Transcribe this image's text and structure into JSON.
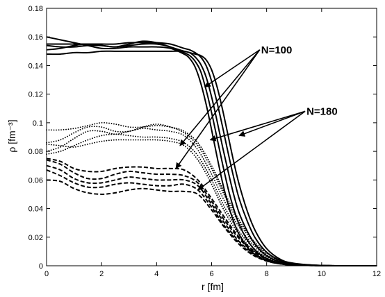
{
  "chart_data": {
    "type": "line",
    "title": "",
    "xlabel": "r [fm]",
    "ylabel": "ρ [fm⁻³]",
    "xlim": [
      0,
      12
    ],
    "ylim": [
      0,
      0.18
    ],
    "xticks": [
      0,
      2,
      4,
      6,
      8,
      10,
      12
    ],
    "yticks": [
      0,
      0.02,
      0.04,
      0.06,
      0.08,
      0.1,
      0.12,
      0.14,
      0.16,
      0.18
    ],
    "grid": false,
    "legend": "none",
    "annotations": [
      {
        "label": "N=100",
        "text_at": [
          7.8,
          0.151
        ],
        "arrows_to": [
          [
            5.75,
            0.125
          ],
          [
            4.85,
            0.084
          ],
          [
            4.7,
            0.068
          ]
        ]
      },
      {
        "label": "N=180",
        "text_at": [
          9.45,
          0.108
        ],
        "arrows_to": [
          [
            7.0,
            0.091
          ],
          [
            5.95,
            0.088
          ],
          [
            5.5,
            0.053
          ]
        ]
      }
    ],
    "series": [
      {
        "style": "solid",
        "x": [
          0.0,
          0.5,
          1.0,
          1.5,
          2.0,
          2.5,
          3.0,
          3.5,
          4.0,
          4.5,
          5.0,
          5.2,
          5.4,
          5.6,
          5.8,
          6.0,
          6.2,
          6.4,
          6.6,
          6.8,
          7.0,
          7.3,
          7.6,
          8.0,
          8.5,
          9.0,
          10.0,
          11.0,
          12.0
        ],
        "values": [
          0.16,
          0.158,
          0.156,
          0.154,
          0.152,
          0.152,
          0.153,
          0.153,
          0.153,
          0.152,
          0.148,
          0.145,
          0.139,
          0.128,
          0.113,
          0.095,
          0.076,
          0.058,
          0.043,
          0.031,
          0.022,
          0.013,
          0.0075,
          0.0035,
          0.0013,
          0.0005,
          0.0001,
          0.0,
          0.0
        ]
      },
      {
        "style": "solid",
        "x": [
          0.0,
          0.5,
          1.0,
          1.5,
          2.0,
          2.5,
          3.0,
          3.5,
          4.0,
          4.5,
          5.0,
          5.2,
          5.4,
          5.6,
          5.8,
          6.0,
          6.2,
          6.4,
          6.6,
          6.8,
          7.0,
          7.3,
          7.6,
          8.0,
          8.5,
          9.0,
          10.0,
          11.0,
          12.0
        ],
        "values": [
          0.154,
          0.153,
          0.153,
          0.154,
          0.154,
          0.153,
          0.154,
          0.155,
          0.155,
          0.153,
          0.149,
          0.147,
          0.143,
          0.136,
          0.123,
          0.107,
          0.089,
          0.071,
          0.054,
          0.04,
          0.029,
          0.018,
          0.0105,
          0.005,
          0.0018,
          0.0007,
          0.0001,
          0.0,
          0.0
        ]
      },
      {
        "style": "solid",
        "x": [
          0.0,
          0.5,
          1.0,
          1.5,
          2.0,
          2.5,
          3.0,
          3.5,
          4.0,
          4.5,
          5.0,
          5.2,
          5.4,
          5.6,
          5.8,
          6.0,
          6.2,
          6.4,
          6.6,
          6.8,
          7.0,
          7.3,
          7.6,
          8.0,
          8.5,
          9.0,
          10.0,
          11.0,
          12.0
        ],
        "values": [
          0.151,
          0.152,
          0.154,
          0.155,
          0.154,
          0.153,
          0.155,
          0.157,
          0.156,
          0.153,
          0.15,
          0.149,
          0.146,
          0.141,
          0.132,
          0.118,
          0.101,
          0.083,
          0.066,
          0.05,
          0.037,
          0.024,
          0.0145,
          0.007,
          0.0026,
          0.001,
          0.0001,
          0.0,
          0.0
        ]
      },
      {
        "style": "solid",
        "x": [
          0.0,
          0.5,
          1.0,
          1.5,
          2.0,
          2.5,
          3.0,
          3.5,
          4.0,
          4.5,
          5.0,
          5.2,
          5.4,
          5.6,
          5.8,
          6.0,
          6.2,
          6.4,
          6.6,
          6.8,
          7.0,
          7.3,
          7.6,
          8.0,
          8.5,
          9.0,
          10.0,
          11.0,
          12.0
        ],
        "values": [
          0.155,
          0.155,
          0.155,
          0.155,
          0.155,
          0.155,
          0.156,
          0.156,
          0.156,
          0.155,
          0.152,
          0.151,
          0.149,
          0.146,
          0.14,
          0.129,
          0.114,
          0.097,
          0.079,
          0.062,
          0.047,
          0.031,
          0.019,
          0.0095,
          0.0036,
          0.0014,
          0.0002,
          0.0,
          0.0
        ]
      },
      {
        "style": "solid",
        "x": [
          0.0,
          0.5,
          1.0,
          1.5,
          2.0,
          2.5,
          3.0,
          3.5,
          4.0,
          4.5,
          5.0,
          5.2,
          5.4,
          5.6,
          5.8,
          6.0,
          6.2,
          6.4,
          6.6,
          6.8,
          7.0,
          7.3,
          7.6,
          8.0,
          8.5,
          9.0,
          10.0,
          11.0,
          12.0
        ],
        "values": [
          0.148,
          0.148,
          0.149,
          0.149,
          0.15,
          0.15,
          0.15,
          0.15,
          0.15,
          0.15,
          0.15,
          0.149,
          0.148,
          0.147,
          0.144,
          0.137,
          0.125,
          0.109,
          0.091,
          0.073,
          0.057,
          0.038,
          0.024,
          0.012,
          0.0045,
          0.0017,
          0.0002,
          0.0,
          0.0
        ]
      },
      {
        "style": "dotted",
        "x": [
          0.0,
          0.5,
          1.0,
          1.5,
          2.0,
          2.5,
          3.0,
          3.5,
          4.0,
          4.5,
          5.0,
          5.5,
          6.0,
          6.5,
          7.0,
          7.5,
          8.0,
          8.5,
          9.0,
          10.0,
          11.0,
          12.0
        ],
        "values": [
          0.095,
          0.095,
          0.096,
          0.098,
          0.1,
          0.099,
          0.097,
          0.097,
          0.098,
          0.097,
          0.094,
          0.086,
          0.07,
          0.05,
          0.032,
          0.018,
          0.009,
          0.004,
          0.0015,
          0.0002,
          0.0,
          0.0
        ]
      },
      {
        "style": "dotted",
        "x": [
          0.0,
          0.5,
          1.0,
          1.5,
          2.0,
          2.5,
          3.0,
          3.5,
          4.0,
          4.5,
          5.0,
          5.5,
          6.0,
          6.5,
          7.0,
          7.5,
          8.0,
          8.5,
          9.0,
          10.0,
          11.0,
          12.0
        ],
        "values": [
          0.086,
          0.088,
          0.093,
          0.097,
          0.097,
          0.094,
          0.094,
          0.097,
          0.099,
          0.097,
          0.093,
          0.084,
          0.068,
          0.048,
          0.03,
          0.017,
          0.008,
          0.0035,
          0.0013,
          0.0002,
          0.0,
          0.0
        ]
      },
      {
        "style": "dotted",
        "x": [
          0.0,
          0.5,
          1.0,
          1.5,
          2.0,
          2.5,
          3.0,
          3.5,
          4.0,
          4.5,
          5.0,
          5.5,
          6.0,
          6.5,
          7.0,
          7.5,
          8.0,
          8.5,
          9.0,
          10.0,
          11.0,
          12.0
        ],
        "values": [
          0.08,
          0.083,
          0.089,
          0.094,
          0.094,
          0.092,
          0.094,
          0.096,
          0.095,
          0.094,
          0.091,
          0.081,
          0.064,
          0.044,
          0.027,
          0.015,
          0.007,
          0.003,
          0.0011,
          0.0001,
          0.0,
          0.0
        ]
      },
      {
        "style": "dotted",
        "x": [
          0.0,
          0.5,
          1.0,
          1.5,
          2.0,
          2.5,
          3.0,
          3.5,
          4.0,
          4.5,
          5.0,
          5.5,
          6.0,
          6.5,
          7.0,
          7.5,
          8.0,
          8.5,
          9.0,
          10.0,
          11.0,
          12.0
        ],
        "values": [
          0.078,
          0.08,
          0.084,
          0.088,
          0.091,
          0.092,
          0.091,
          0.09,
          0.09,
          0.089,
          0.086,
          0.077,
          0.06,
          0.04,
          0.024,
          0.013,
          0.006,
          0.0025,
          0.0009,
          0.0001,
          0.0,
          0.0
        ]
      },
      {
        "style": "dotted",
        "x": [
          0.0,
          0.5,
          1.0,
          1.5,
          2.0,
          2.5,
          3.0,
          3.5,
          4.0,
          4.5,
          5.0,
          5.5,
          6.0,
          6.5,
          7.0,
          7.5,
          8.0,
          8.5,
          9.0,
          10.0,
          11.0,
          12.0
        ],
        "values": [
          0.085,
          0.084,
          0.083,
          0.085,
          0.087,
          0.088,
          0.088,
          0.088,
          0.088,
          0.087,
          0.084,
          0.074,
          0.057,
          0.037,
          0.022,
          0.011,
          0.005,
          0.002,
          0.0007,
          0.0001,
          0.0,
          0.0
        ]
      },
      {
        "style": "dashed",
        "x": [
          0.0,
          0.5,
          1.0,
          1.5,
          2.0,
          2.5,
          3.0,
          3.5,
          4.0,
          4.5,
          5.0,
          5.5,
          6.0,
          6.5,
          7.0,
          7.5,
          8.0,
          8.5,
          9.0,
          10.0,
          11.0,
          12.0
        ],
        "values": [
          0.075,
          0.073,
          0.068,
          0.066,
          0.066,
          0.068,
          0.069,
          0.069,
          0.068,
          0.068,
          0.067,
          0.06,
          0.047,
          0.033,
          0.02,
          0.011,
          0.005,
          0.002,
          0.0007,
          0.0001,
          0.0,
          0.0
        ]
      },
      {
        "style": "dashed",
        "x": [
          0.0,
          0.5,
          1.0,
          1.5,
          2.0,
          2.5,
          3.0,
          3.5,
          4.0,
          4.5,
          5.0,
          5.5,
          6.0,
          6.5,
          7.0,
          7.5,
          8.0,
          8.5,
          9.0,
          10.0,
          11.0,
          12.0
        ],
        "values": [
          0.074,
          0.071,
          0.065,
          0.061,
          0.061,
          0.064,
          0.066,
          0.065,
          0.064,
          0.064,
          0.063,
          0.058,
          0.045,
          0.031,
          0.019,
          0.01,
          0.0045,
          0.0018,
          0.0006,
          0.0001,
          0.0,
          0.0
        ]
      },
      {
        "style": "dashed",
        "x": [
          0.0,
          0.5,
          1.0,
          1.5,
          2.0,
          2.5,
          3.0,
          3.5,
          4.0,
          4.5,
          5.0,
          5.5,
          6.0,
          6.5,
          7.0,
          7.5,
          8.0,
          8.5,
          9.0,
          10.0,
          11.0,
          12.0
        ],
        "values": [
          0.07,
          0.067,
          0.061,
          0.058,
          0.058,
          0.06,
          0.062,
          0.061,
          0.06,
          0.06,
          0.06,
          0.056,
          0.043,
          0.029,
          0.017,
          0.009,
          0.004,
          0.0016,
          0.0006,
          0.0001,
          0.0,
          0.0
        ]
      },
      {
        "style": "dashed",
        "x": [
          0.0,
          0.5,
          1.0,
          1.5,
          2.0,
          2.5,
          3.0,
          3.5,
          4.0,
          4.5,
          5.0,
          5.5,
          6.0,
          6.5,
          7.0,
          7.5,
          8.0,
          8.5,
          9.0,
          10.0,
          11.0,
          12.0
        ],
        "values": [
          0.067,
          0.063,
          0.058,
          0.055,
          0.055,
          0.057,
          0.058,
          0.057,
          0.056,
          0.056,
          0.057,
          0.053,
          0.041,
          0.027,
          0.016,
          0.008,
          0.0035,
          0.0014,
          0.0005,
          0.0001,
          0.0,
          0.0
        ]
      },
      {
        "style": "dashed",
        "x": [
          0.0,
          0.5,
          1.0,
          1.5,
          2.0,
          2.5,
          3.0,
          3.5,
          4.0,
          4.5,
          5.0,
          5.5,
          6.0,
          6.5,
          7.0,
          7.5,
          8.0,
          8.5,
          9.0,
          10.0,
          11.0,
          12.0
        ],
        "values": [
          0.06,
          0.059,
          0.054,
          0.051,
          0.05,
          0.051,
          0.053,
          0.054,
          0.053,
          0.052,
          0.052,
          0.05,
          0.039,
          0.026,
          0.015,
          0.0075,
          0.0033,
          0.0013,
          0.0005,
          0.0001,
          0.0,
          0.0
        ]
      }
    ]
  }
}
